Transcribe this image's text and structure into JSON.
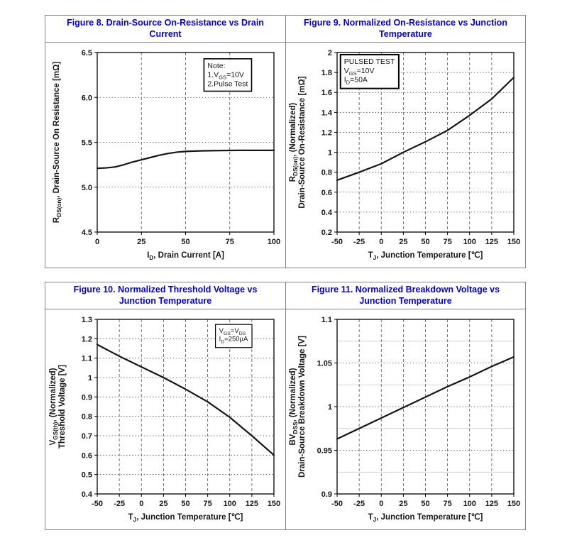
{
  "page": {
    "background": "#ffffff",
    "panel_border_color": "#848484",
    "title_color": "#0000ee",
    "curve_color": "#161616"
  },
  "chart_data": [
    {
      "figure_title": "Figure 8. Drain-Source On-Resistance vs Drain Current",
      "type": "line",
      "xlabel": [
        {
          "t": "I"
        },
        {
          "t": "D",
          "sub": true
        },
        {
          "t": ", Drain Current [A]"
        }
      ],
      "ylabel_lines": [
        [
          {
            "t": "R"
          },
          {
            "t": "DS(on)",
            "sub": true
          },
          {
            "t": ", Drain-Source On Resistance [mΩ]"
          }
        ]
      ],
      "xlim": [
        0,
        100
      ],
      "ylim": [
        4.5,
        6.5
      ],
      "xticks": [
        {
          "v": 0,
          "l": "0"
        },
        {
          "v": 25,
          "l": "25"
        },
        {
          "v": 50,
          "l": "50"
        },
        {
          "v": 75,
          "l": "75"
        },
        {
          "v": 100,
          "l": "100"
        }
      ],
      "yticks": [
        {
          "v": 4.5,
          "l": "4.5"
        },
        {
          "v": 5.0,
          "l": "5.0"
        },
        {
          "v": 5.5,
          "l": "5.5"
        },
        {
          "v": 6.0,
          "l": "6.0"
        },
        {
          "v": 6.5,
          "l": "6.5"
        }
      ],
      "grid": "on",
      "legend": {
        "pos": {
          "fx": 0.6,
          "fy": 0.035
        },
        "border": 1.6,
        "fs": 10.5,
        "lines": [
          [
            {
              "t": "Note:"
            }
          ],
          [
            {
              "t": "1.V"
            },
            {
              "t": "GS",
              "sub": true
            },
            {
              "t": "=10V"
            }
          ],
          [
            {
              "t": "2.Pulse Test"
            }
          ]
        ]
      },
      "series": [
        {
          "name": "RDS(on) vs ID",
          "points": [
            [
              0,
              5.21
            ],
            [
              5,
              5.215
            ],
            [
              10,
              5.225
            ],
            [
              15,
              5.25
            ],
            [
              20,
              5.28
            ],
            [
              25,
              5.305
            ],
            [
              30,
              5.33
            ],
            [
              35,
              5.355
            ],
            [
              40,
              5.375
            ],
            [
              45,
              5.39
            ],
            [
              50,
              5.398
            ],
            [
              55,
              5.402
            ],
            [
              60,
              5.405
            ],
            [
              70,
              5.408
            ],
            [
              80,
              5.41
            ],
            [
              90,
              5.41
            ],
            [
              100,
              5.41
            ]
          ]
        }
      ]
    },
    {
      "figure_title": "Figure 9. Normalized On-Resistance vs Junction Temperature",
      "type": "line",
      "xlabel": [
        {
          "t": "T"
        },
        {
          "t": "J",
          "sub": true
        },
        {
          "t": ", Junction Temperature [℃]"
        }
      ],
      "ylabel_lines": [
        [
          {
            "t": "R"
          },
          {
            "t": "DS(on)",
            "sub": true
          },
          {
            "t": ", (Normalized)"
          }
        ],
        [
          {
            "t": "Drain-Source On-Resistance [mΩ]"
          }
        ]
      ],
      "xlim": [
        -50,
        150
      ],
      "ylim": [
        0.2,
        2
      ],
      "xticks": [
        {
          "v": -50,
          "l": "-50"
        },
        {
          "v": -25,
          "l": "-25"
        },
        {
          "v": 0,
          "l": "0"
        },
        {
          "v": 25,
          "l": "25"
        },
        {
          "v": 50,
          "l": "50"
        },
        {
          "v": 75,
          "l": "75"
        },
        {
          "v": 100,
          "l": "100"
        },
        {
          "v": 125,
          "l": "125"
        },
        {
          "v": 150,
          "l": "150"
        }
      ],
      "yticks": [
        {
          "v": 0.2,
          "l": "0.2"
        },
        {
          "v": 0.4,
          "l": "0.4"
        },
        {
          "v": 0.6,
          "l": "0.6"
        },
        {
          "v": 0.8,
          "l": "0.8"
        },
        {
          "v": 1,
          "l": "1"
        },
        {
          "v": 1.2,
          "l": "1.2"
        },
        {
          "v": 1.4,
          "l": "1.4"
        },
        {
          "v": 1.6,
          "l": "1.6"
        },
        {
          "v": 1.8,
          "l": "1.8"
        },
        {
          "v": 2,
          "l": "2"
        }
      ],
      "grid": "on",
      "legend": {
        "pos": {
          "fx": 0.015,
          "fy": 0.012
        },
        "border": 2,
        "fs": 10.5,
        "lines": [
          [
            {
              "t": "PULSED TEST"
            }
          ],
          [
            {
              "t": "V"
            },
            {
              "t": "GS",
              "sub": true
            },
            {
              "t": "=10V"
            }
          ],
          [
            {
              "t": "I"
            },
            {
              "t": "D",
              "sub": true
            },
            {
              "t": "=50A"
            }
          ]
        ]
      },
      "series": [
        {
          "name": "normalized RDS(on) vs TJ",
          "points": [
            [
              -50,
              0.72
            ],
            [
              -25,
              0.8
            ],
            [
              0,
              0.885
            ],
            [
              25,
              1.0
            ],
            [
              50,
              1.105
            ],
            [
              75,
              1.22
            ],
            [
              100,
              1.37
            ],
            [
              125,
              1.535
            ],
            [
              150,
              1.75
            ]
          ]
        }
      ]
    },
    {
      "figure_title": "Figure 10. Normalized Threshold Voltage vs Junction Temperature",
      "type": "line",
      "xlabel": [
        {
          "t": "T"
        },
        {
          "t": "J",
          "sub": true
        },
        {
          "t": ", Junction Temperature [℃]"
        }
      ],
      "ylabel_lines": [
        [
          {
            "t": "V"
          },
          {
            "t": "GS(th)",
            "sub": true
          },
          {
            "t": ", (Normalized)"
          }
        ],
        [
          {
            "t": "Threshold Voltage [V]"
          }
        ]
      ],
      "xlim": [
        -50,
        150
      ],
      "ylim": [
        0.4,
        1.3
      ],
      "xticks": [
        {
          "v": -50,
          "l": "-50"
        },
        {
          "v": -25,
          "l": "-25"
        },
        {
          "v": 0,
          "l": "0"
        },
        {
          "v": 25,
          "l": "25"
        },
        {
          "v": 50,
          "l": "50"
        },
        {
          "v": 75,
          "l": "75"
        },
        {
          "v": 100,
          "l": "100"
        },
        {
          "v": 125,
          "l": "125"
        },
        {
          "v": 150,
          "l": "150"
        }
      ],
      "yticks": [
        {
          "v": 0.4,
          "l": "0.4"
        },
        {
          "v": 0.5,
          "l": "0.5"
        },
        {
          "v": 0.6,
          "l": "0.6"
        },
        {
          "v": 0.7,
          "l": "0.7"
        },
        {
          "v": 0.8,
          "l": "0.8"
        },
        {
          "v": 0.9,
          "l": "0.9"
        },
        {
          "v": 1,
          "l": "1"
        },
        {
          "v": 1.1,
          "l": "1.1"
        },
        {
          "v": 1.2,
          "l": "1.2"
        },
        {
          "v": 1.3,
          "l": "1.3"
        }
      ],
      "grid": "on",
      "legend": {
        "pos": {
          "fx": 0.665,
          "fy": 0.025
        },
        "border": 1.2,
        "fs": 9.5,
        "lines": [
          [
            {
              "t": "V"
            },
            {
              "t": "GS",
              "sub": true
            },
            {
              "t": "=V"
            },
            {
              "t": "DS",
              "sub": true
            }
          ],
          [
            {
              "t": "I"
            },
            {
              "t": "D",
              "sub": true
            },
            {
              "t": "=250µA"
            }
          ]
        ]
      },
      "series": [
        {
          "name": "normalized VGS(th) vs TJ",
          "points": [
            [
              -50,
              1.17
            ],
            [
              -25,
              1.11
            ],
            [
              0,
              1.055
            ],
            [
              25,
              1.0
            ],
            [
              50,
              0.94
            ],
            [
              75,
              0.875
            ],
            [
              100,
              0.795
            ],
            [
              125,
              0.7
            ],
            [
              150,
              0.6
            ]
          ]
        }
      ]
    },
    {
      "figure_title": "Figure 11. Normalized Breakdown Voltage vs Junction Temperature",
      "type": "line",
      "xlabel": [
        {
          "t": "T"
        },
        {
          "t": "J",
          "sub": true
        },
        {
          "t": ", Junction Temperature [℃]"
        }
      ],
      "ylabel_lines": [
        [
          {
            "t": "BV"
          },
          {
            "t": "DSS",
            "sub": true
          },
          {
            "t": ", (Normalized)"
          }
        ],
        [
          {
            "t": "Drain-Source Breakdown Voltage [V]"
          }
        ]
      ],
      "xlim": [
        -50,
        150
      ],
      "ylim": [
        0.9,
        1.1
      ],
      "xticks": [
        {
          "v": -50,
          "l": "-50"
        },
        {
          "v": -25,
          "l": "-25"
        },
        {
          "v": 0,
          "l": "0"
        },
        {
          "v": 25,
          "l": "25"
        },
        {
          "v": 50,
          "l": "50"
        },
        {
          "v": 75,
          "l": "75"
        },
        {
          "v": 100,
          "l": "100"
        },
        {
          "v": 125,
          "l": "125"
        },
        {
          "v": 150,
          "l": "150"
        }
      ],
      "yticks": [
        {
          "v": 0.9,
          "l": "0.9"
        },
        {
          "v": 0.95,
          "l": "0.95"
        },
        {
          "v": 1,
          "l": "1"
        },
        {
          "v": 1.05,
          "l": "1.05"
        },
        {
          "v": 1.1,
          "l": "1.1"
        }
      ],
      "yticks_minor": [
        0.925,
        0.975,
        1.025,
        1.075
      ],
      "grid": "on",
      "legend": null,
      "series": [
        {
          "name": "normalized BVDSS vs TJ",
          "points": [
            [
              -50,
              0.963
            ],
            [
              -25,
              0.975
            ],
            [
              0,
              0.987
            ],
            [
              25,
              0.999
            ],
            [
              50,
              1.011
            ],
            [
              75,
              1.023
            ],
            [
              100,
              1.034
            ],
            [
              125,
              1.046
            ],
            [
              150,
              1.057
            ]
          ]
        }
      ]
    }
  ]
}
